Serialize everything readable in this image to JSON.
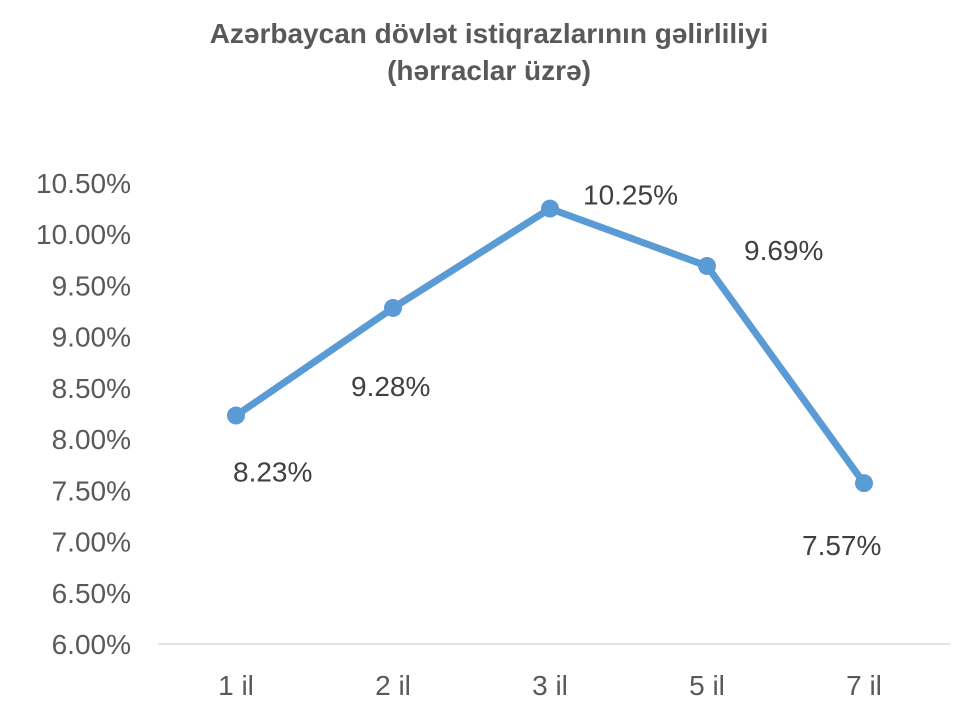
{
  "chart_data": {
    "type": "line",
    "title": "Azərbaycan dövlət istiqrazlarının gəlirliliyi",
    "subtitle": "(hərraclar üzrə)",
    "categories": [
      "1 il",
      "2 il",
      "3 il",
      "5 il",
      "7 il"
    ],
    "series": [
      {
        "values": [
          8.23,
          9.28,
          10.25,
          9.69,
          7.57
        ],
        "labels": [
          "8.23%",
          "9.28%",
          "10.25%",
          "9.69%",
          "7.57%"
        ],
        "color": "#5B9BD5"
      }
    ],
    "ylim": [
      6.0,
      10.5
    ],
    "yticks": [
      "6.00%",
      "6.50%",
      "7.00%",
      "7.50%",
      "8.00%",
      "8.50%",
      "9.00%",
      "9.50%",
      "10.00%",
      "10.50%"
    ],
    "grid": false,
    "legend": "none"
  }
}
